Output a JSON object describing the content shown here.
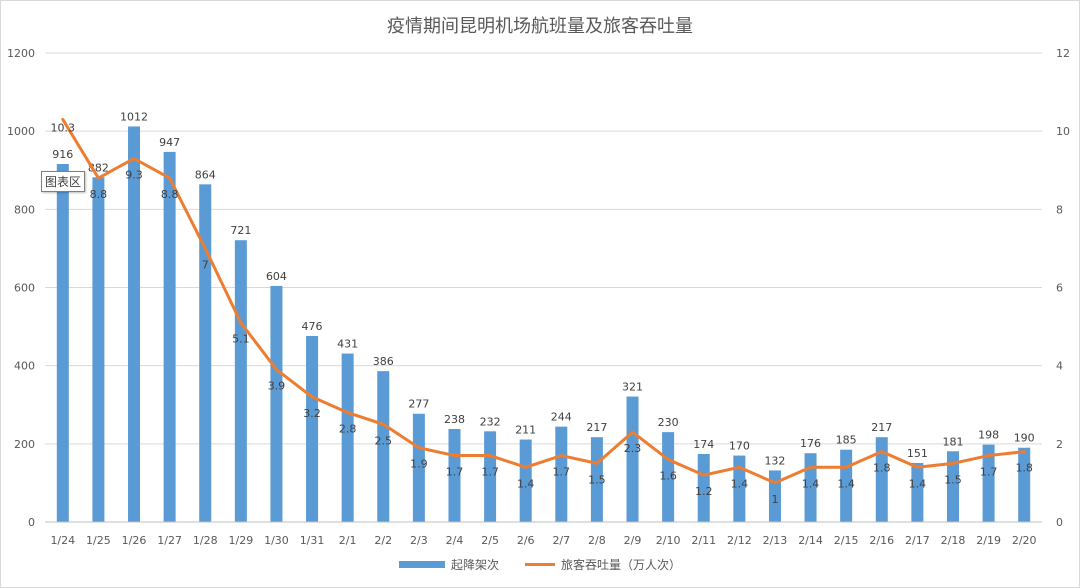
{
  "colors": {
    "bar": "#5B9BD5",
    "line": "#ED7D31",
    "grid": "#D9D9D9",
    "axis_text": "#595959",
    "label_text": "#404040"
  },
  "tooltip": "图表区",
  "chart_data": {
    "type": "bar",
    "title": "疫情期间昆明机场航班量及旅客吞吐量",
    "categories": [
      "1/24",
      "1/25",
      "1/26",
      "1/27",
      "1/28",
      "1/29",
      "1/30",
      "1/31",
      "2/1",
      "2/2",
      "2/3",
      "2/4",
      "2/5",
      "2/6",
      "2/7",
      "2/8",
      "2/9",
      "2/10",
      "2/11",
      "2/12",
      "2/13",
      "2/14",
      "2/15",
      "2/16",
      "2/17",
      "2/18",
      "2/19",
      "2/20"
    ],
    "series": [
      {
        "name": "起降架次",
        "type": "bar",
        "axis": "left",
        "values": [
          916,
          882,
          1012,
          947,
          864,
          721,
          604,
          476,
          431,
          386,
          277,
          238,
          232,
          211,
          244,
          217,
          321,
          230,
          174,
          170,
          132,
          176,
          185,
          217,
          151,
          181,
          198,
          190
        ]
      },
      {
        "name": "旅客吞吐量（万人次）",
        "type": "line",
        "axis": "right",
        "values": [
          10.3,
          8.8,
          9.3,
          8.8,
          7,
          5.1,
          3.9,
          3.2,
          2.8,
          2.5,
          1.9,
          1.7,
          1.7,
          1.4,
          1.7,
          1.5,
          2.3,
          1.6,
          1.2,
          1.4,
          1,
          1.4,
          1.4,
          1.8,
          1.4,
          1.5,
          1.7,
          1.8
        ]
      }
    ],
    "y_left": {
      "ylim": [
        0,
        1200
      ],
      "ticks": [
        "0",
        "200",
        "400",
        "600",
        "800",
        "1000",
        "1200"
      ]
    },
    "y_right": {
      "ylim": [
        0,
        12
      ],
      "ticks": [
        "0",
        "2",
        "4",
        "6",
        "8",
        "10",
        "12"
      ]
    },
    "grid": true,
    "legend": "bottom"
  }
}
